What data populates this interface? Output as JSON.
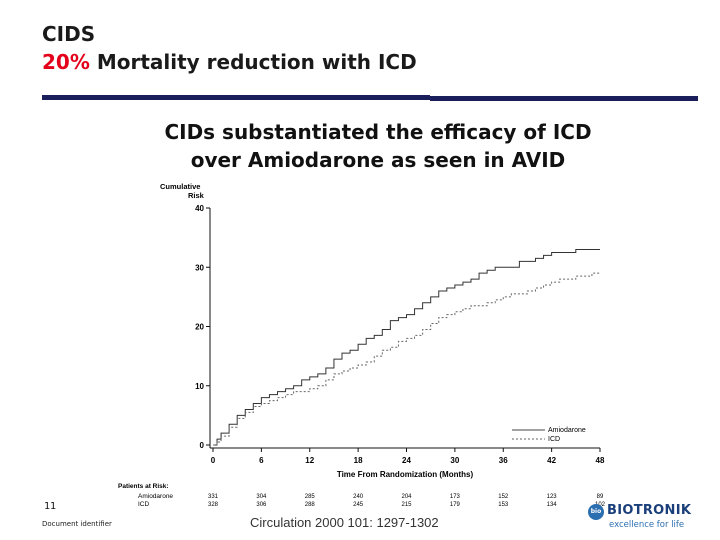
{
  "slide": {
    "title_line1": "CIDS",
    "title_accent": "20%",
    "title_rest": " Mortality reduction with ICD",
    "subtitle_line1": "CIDs substantiated the efficacy of ICD",
    "subtitle_line2": "over Amiodarone as seen in AVID",
    "page_number": "11",
    "document_identifier": "Document identifier",
    "citation": "Circulation 2000 101: 1297-1302"
  },
  "logo": {
    "mark": "bio",
    "name": "BIOTRONIK",
    "tagline": "excellence for life",
    "primary_color": "#1a3f7a",
    "accent_color": "#2c6fb0"
  },
  "colors": {
    "accent_red": "#e3001b",
    "rule_navy": "#1a1f5c"
  },
  "chart_data": {
    "type": "line",
    "title": "",
    "ylabel_line1": "Cumulative",
    "ylabel_line2": "Risk",
    "xlabel": "Time From Randomization (Months)",
    "xlim": [
      0,
      48
    ],
    "ylim": [
      0,
      40
    ],
    "x_ticks": [
      0,
      6,
      12,
      18,
      24,
      30,
      36,
      42,
      48
    ],
    "y_ticks": [
      0,
      10,
      20,
      30,
      40
    ],
    "grid": false,
    "legend": {
      "placement": "bottom-right"
    },
    "series": [
      {
        "name": "Amiodarone",
        "style": "solid",
        "x": [
          0,
          0.5,
          1,
          2,
          3,
          4,
          5,
          6,
          7,
          8,
          9,
          10,
          11,
          12,
          13,
          14,
          15,
          16,
          17,
          18,
          19,
          20,
          21,
          22,
          23,
          24,
          25,
          26,
          27,
          28,
          29,
          30,
          31,
          32,
          33,
          34,
          35,
          36,
          37,
          38,
          39,
          40,
          41,
          42,
          43,
          44,
          45,
          46,
          47,
          48
        ],
        "values": [
          0,
          1,
          2,
          3.5,
          5,
          6,
          7,
          8,
          8.5,
          9,
          9.5,
          10,
          11,
          11.5,
          12,
          13,
          14.5,
          15.5,
          16,
          17,
          18,
          18.5,
          19.5,
          21,
          21.5,
          22,
          23,
          24,
          25,
          26,
          26.5,
          27,
          27.5,
          28,
          29,
          29.5,
          30,
          30,
          30,
          31,
          31,
          31.5,
          32,
          32.5,
          32.5,
          32.5,
          33,
          33,
          33,
          33
        ]
      },
      {
        "name": "ICD",
        "style": "dashed",
        "x": [
          0,
          0.5,
          1,
          2,
          3,
          4,
          5,
          6,
          7,
          8,
          9,
          10,
          11,
          12,
          13,
          14,
          15,
          16,
          17,
          18,
          19,
          20,
          21,
          22,
          23,
          24,
          25,
          26,
          27,
          28,
          29,
          30,
          31,
          32,
          33,
          34,
          35,
          36,
          37,
          38,
          39,
          40,
          41,
          42,
          43,
          44,
          45,
          46,
          47,
          48
        ],
        "values": [
          0,
          0.5,
          1.5,
          3,
          4.5,
          5.5,
          6.5,
          7,
          7.5,
          8,
          8.5,
          9,
          9,
          9.5,
          10,
          11,
          12,
          12.5,
          13,
          13.5,
          14,
          15,
          16,
          16.5,
          17.5,
          18,
          18.5,
          19.5,
          20.5,
          21.5,
          22,
          22.5,
          23,
          23.5,
          23.5,
          24,
          24.5,
          25,
          25.5,
          25.5,
          26,
          26.5,
          27,
          27.5,
          28,
          28,
          28.5,
          28.5,
          29,
          29
        ]
      }
    ],
    "risk_table": {
      "header": "Patients at Risk:",
      "rows": [
        {
          "label": "Amiodarone",
          "values": [
            "331",
            "304",
            "285",
            "240",
            "204",
            "173",
            "152",
            "123",
            "89"
          ]
        },
        {
          "label": "ICD",
          "values": [
            "328",
            "306",
            "288",
            "245",
            "215",
            "179",
            "153",
            "134",
            "102"
          ]
        }
      ]
    }
  }
}
